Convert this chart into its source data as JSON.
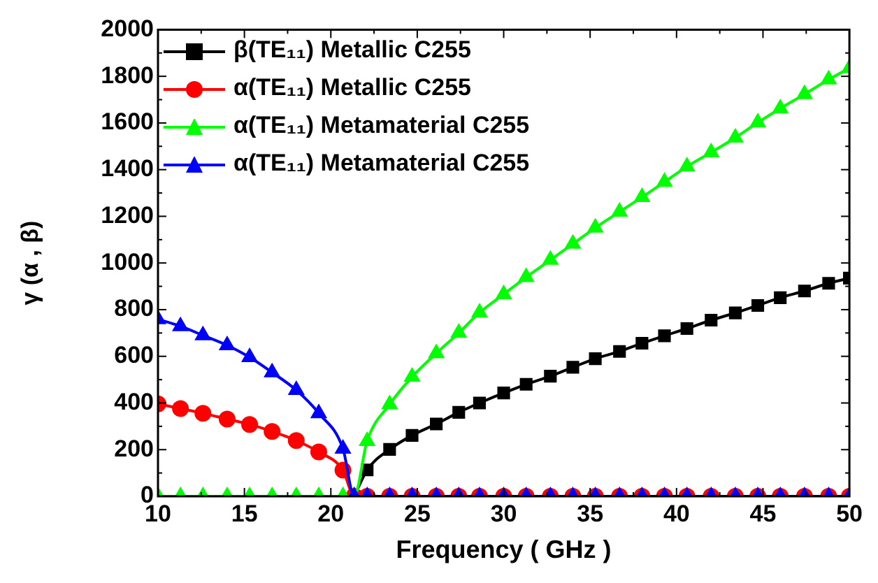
{
  "chart_data": {
    "type": "line",
    "xlabel": "Frequency ( GHz )",
    "ylabel": "γ (α , β)",
    "x": [
      10,
      11.3,
      12.6,
      14.0,
      15.3,
      16.6,
      18.0,
      19.3,
      20.7,
      21.35,
      22.1,
      23.4,
      24.7,
      26.1,
      27.4,
      28.6,
      30.0,
      31.3,
      32.7,
      34.0,
      35.3,
      36.7,
      38.0,
      39.3,
      40.6,
      42.0,
      43.4,
      44.7,
      46.0,
      47.4,
      48.8,
      50
    ],
    "series": [
      {
        "name": "β(TE₁₁) Metallic C255",
        "color": "#000000",
        "marker": "square",
        "values": [
          null,
          null,
          null,
          null,
          null,
          null,
          null,
          null,
          null,
          0,
          113,
          201,
          261,
          310,
          360,
          400,
          443,
          480,
          515,
          553,
          590,
          621,
          656,
          688,
          719,
          755,
          786,
          818,
          851,
          880,
          913,
          935
        ]
      },
      {
        "name": "α(TE₁₁) Metallic C255",
        "color": "#ff0000",
        "marker": "circle",
        "values": [
          396,
          376,
          356,
          331,
          308,
          278,
          239,
          190,
          112,
          0,
          0,
          0,
          0,
          0,
          0,
          0,
          0,
          0,
          0,
          0,
          0,
          0,
          0,
          0,
          0,
          0,
          0,
          0,
          0,
          0,
          0,
          0
        ]
      },
      {
        "name": "α(TE₁₁) Metamaterial C255",
        "color": "#00ff00",
        "marker": "triangle",
        "values": [
          0,
          0,
          0,
          0,
          0,
          0,
          0,
          0,
          0,
          0,
          237,
          394,
          512,
          613,
          700,
          787,
          866,
          939,
          1013,
          1082,
          1151,
          1219,
          1282,
          1347,
          1413,
          1474,
          1537,
          1602,
          1662,
          1723,
          1786,
          1835
        ]
      },
      {
        "name": "α(TE₁₁) Metamaterial C255",
        "color": "#0000ff",
        "marker": "triangle",
        "values": [
          759,
          729,
          690,
          647,
          596,
          531,
          455,
          356,
          204,
          0,
          0,
          0,
          0,
          0,
          0,
          0,
          0,
          0,
          0,
          0,
          0,
          0,
          0,
          0,
          0,
          0,
          0,
          0,
          0,
          0,
          0,
          0
        ]
      }
    ],
    "xlim": [
      10,
      50
    ],
    "xticks": [
      10,
      15,
      20,
      25,
      30,
      35,
      40,
      45,
      50
    ],
    "ylim": [
      0,
      2000
    ],
    "yticks": [
      0,
      200,
      400,
      600,
      800,
      1000,
      1200,
      1400,
      1600,
      1800,
      2000
    ],
    "grid": false,
    "legend": "top left"
  }
}
